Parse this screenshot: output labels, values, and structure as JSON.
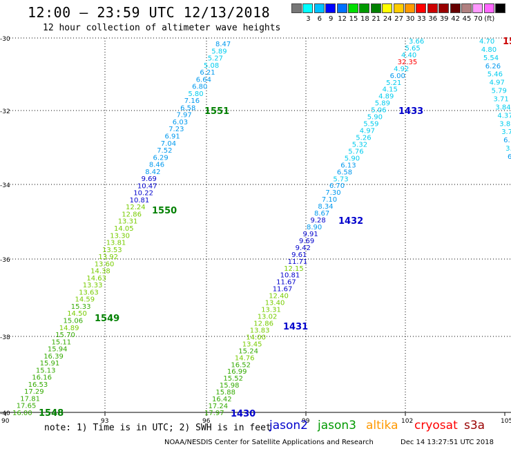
{
  "header": {
    "title": "12:00 – 23:59 UTC 12/13/2018",
    "subtitle": "12 hour collection of altimeter wave heights"
  },
  "colorbar": {
    "colors": [
      "#777777",
      "#00ffff",
      "#00c0ff",
      "#0000ff",
      "#0070ff",
      "#00dd00",
      "#009900",
      "#008000",
      "#ffff00",
      "#ffcc00",
      "#ff9900",
      "#ff0000",
      "#cc0000",
      "#990000",
      "#660000",
      "#b08080",
      "#ff99ff",
      "#ff66ff",
      "#000000"
    ],
    "labels": [
      "3",
      "6",
      "9",
      "12",
      "15",
      "18",
      "21",
      "24",
      "27",
      "30",
      "33",
      "36",
      "39",
      "42",
      "45",
      "70",
      "(ft)"
    ]
  },
  "axes": {
    "y_labels": [
      "-30",
      "-32",
      "-34",
      "-36",
      "-38",
      "-40"
    ],
    "x_labels": [
      "90",
      "93",
      "96",
      "99",
      "102",
      "105"
    ]
  },
  "passes": [
    {
      "label": "1551",
      "color": "#008000"
    },
    {
      "label": "1550",
      "color": "#008000"
    },
    {
      "label": "1549",
      "color": "#008000"
    },
    {
      "label": "1548",
      "color": "#008000"
    },
    {
      "label": "1433",
      "color": "#0000cc"
    },
    {
      "label": "1432",
      "color": "#0000cc"
    },
    {
      "label": "1431",
      "color": "#0000cc"
    },
    {
      "label": "1430",
      "color": "#0000cc"
    },
    {
      "label": "15",
      "color": "#cc0000"
    }
  ],
  "tracks": {
    "left": [
      "8.47",
      "5.89",
      "5.27",
      "5.08",
      "6.21",
      "6.64",
      "6.80",
      "5.80",
      "7.16",
      "6.58",
      "7.97",
      "6.03",
      "7.23",
      "6.91",
      "7.04",
      "7.52",
      "6.29",
      "8.46",
      "8.42",
      "9.69",
      "10.47",
      "10.22",
      "10.81",
      "12.24",
      "12.86",
      "13.31",
      "14.05",
      "13.30",
      "13.81",
      "13.53",
      "13.92",
      "13.60",
      "14.38",
      "14.63",
      "13.33",
      "13.63",
      "14.59",
      "15.33",
      "14.50",
      "15.06",
      "14.89",
      "15.70",
      "15.11",
      "15.94",
      "16.39",
      "15.91",
      "15.13",
      "16.16",
      "16.53",
      "17.29",
      "17.81",
      "17.65",
      "16.00"
    ],
    "middle": [
      "3.66",
      "5.65",
      "4.40",
      "32.35",
      "4.92",
      "6.00",
      "5.21",
      "4.15",
      "4.89",
      "5.89",
      "5.06",
      "5.90",
      "5.59",
      "4.97",
      "5.26",
      "5.32",
      "5.76",
      "5.90",
      "6.13",
      "6.58",
      "5.73",
      "6.70",
      "7.30",
      "7.10",
      "8.34",
      "8.67",
      "9.28",
      "8.90",
      "9.91",
      "9.69",
      "9.42",
      "9.61",
      "11.71",
      "12.15",
      "10.81",
      "11.67",
      "11.67",
      "12.40",
      "13.40",
      "13.31",
      "13.02",
      "12.86",
      "13.83",
      "14.00",
      "13.45",
      "15.24",
      "14.76",
      "16.52",
      "16.99",
      "15.52",
      "15.98",
      "15.88",
      "16.42",
      "17.24",
      "17.97"
    ],
    "right": [
      "4.70",
      "4.80",
      "5.54",
      "6.26",
      "5.46",
      "4.97",
      "5.79",
      "3.71",
      "3.84",
      "4.37",
      "3.8",
      "3.7",
      "6.",
      "3.",
      "6"
    ]
  },
  "legend": {
    "note": "note: 1) Time is in UTC; 2) SWH is in feet",
    "sats": [
      {
        "name": "jason2",
        "color": "#0000cc"
      },
      {
        "name": "jason3",
        "color": "#009900"
      },
      {
        "name": "altika",
        "color": "#ff9900"
      },
      {
        "name": "cryosat",
        "color": "#ff0000"
      },
      {
        "name": "s3a",
        "color": "#990000"
      }
    ]
  },
  "footer": {
    "left": "NOAA/NESDIS Center for Satellite Applications and Research",
    "right": "Dec 14 13:27:51 UTC 2018"
  }
}
